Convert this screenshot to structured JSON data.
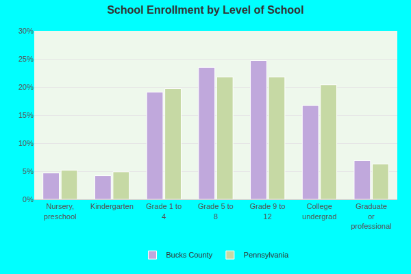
{
  "chart_data": {
    "type": "bar",
    "title": "School Enrollment by Level of School",
    "categories": [
      "Nursery, preschool",
      "Kindergarten",
      "Grade 1 to 4",
      "Grade 5 to 8",
      "Grade 9 to 12",
      "College undergrad",
      "Graduate or professional"
    ],
    "series": [
      {
        "name": "Bucks County",
        "color": "#c0a8dc",
        "values": [
          4.7,
          4.2,
          19.1,
          23.5,
          24.7,
          16.7,
          6.9
        ]
      },
      {
        "name": "Pennsylvania",
        "color": "#c6d9a4",
        "values": [
          5.2,
          4.9,
          19.7,
          21.8,
          21.8,
          20.4,
          6.3
        ]
      }
    ],
    "ylim": [
      0,
      30
    ],
    "yticks": [
      {
        "value": 0,
        "label": "0%"
      },
      {
        "value": 5,
        "label": "5%"
      },
      {
        "value": 10,
        "label": "10%"
      },
      {
        "value": 15,
        "label": "15%"
      },
      {
        "value": 20,
        "label": "20%"
      },
      {
        "value": 25,
        "label": "25%"
      },
      {
        "value": 30,
        "label": "30%"
      }
    ],
    "grid": true,
    "legend": "bottom"
  }
}
